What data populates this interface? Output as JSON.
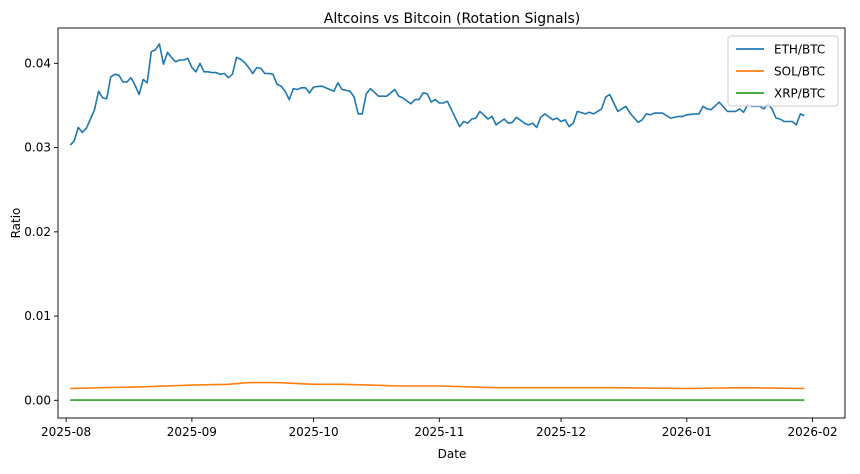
{
  "chart_data": {
    "type": "line",
    "title": "Altcoins vs Bitcoin (Rotation Signals)",
    "xlabel": "Date",
    "ylabel": "Ratio",
    "xlim": [
      "2025-07-30",
      "2026-02-09"
    ],
    "ylim": [
      -0.0021,
      0.0442
    ],
    "x_ticks": [
      "2025-08",
      "2025-09",
      "2025-10",
      "2025-11",
      "2025-12",
      "2026-01",
      "2026-02"
    ],
    "x_tick_dates": [
      "2025-08-01",
      "2025-09-01",
      "2025-10-01",
      "2025-11-01",
      "2025-12-01",
      "2026-01-01",
      "2026-02-01"
    ],
    "y_ticks": [
      "0.00",
      "0.01",
      "0.02",
      "0.03",
      "0.04"
    ],
    "y_tick_values": [
      0,
      0.01,
      0.02,
      0.03,
      0.04
    ],
    "grid": false,
    "legend": "top-right",
    "series": [
      {
        "name": "ETH/BTC",
        "color": "#1f77b4",
        "points": [
          [
            "2025-08-02",
            0.0303
          ],
          [
            "2025-08-03",
            0.0308
          ],
          [
            "2025-08-04",
            0.0324
          ],
          [
            "2025-08-05",
            0.0318
          ],
          [
            "2025-08-06",
            0.0323
          ],
          [
            "2025-08-07",
            0.0334
          ],
          [
            "2025-08-08",
            0.0345
          ],
          [
            "2025-08-09",
            0.0367
          ],
          [
            "2025-08-10",
            0.0359
          ],
          [
            "2025-08-11",
            0.0358
          ],
          [
            "2025-08-12",
            0.0384
          ],
          [
            "2025-08-13",
            0.0387
          ],
          [
            "2025-08-14",
            0.0386
          ],
          [
            "2025-08-15",
            0.0378
          ],
          [
            "2025-08-16",
            0.0378
          ],
          [
            "2025-08-17",
            0.0383
          ],
          [
            "2025-08-18",
            0.0374
          ],
          [
            "2025-08-19",
            0.0363
          ],
          [
            "2025-08-20",
            0.0381
          ],
          [
            "2025-08-21",
            0.0377
          ],
          [
            "2025-08-22",
            0.0414
          ],
          [
            "2025-08-23",
            0.0416
          ],
          [
            "2025-08-24",
            0.0423
          ],
          [
            "2025-08-25",
            0.0399
          ],
          [
            "2025-08-26",
            0.0413
          ],
          [
            "2025-08-27",
            0.0407
          ],
          [
            "2025-08-28",
            0.0402
          ],
          [
            "2025-08-29",
            0.0404
          ],
          [
            "2025-08-30",
            0.0404
          ],
          [
            "2025-08-31",
            0.0406
          ],
          [
            "2025-09-01",
            0.0395
          ],
          [
            "2025-09-02",
            0.039
          ],
          [
            "2025-09-03",
            0.04
          ],
          [
            "2025-09-04",
            0.039
          ],
          [
            "2025-09-05",
            0.039
          ],
          [
            "2025-09-06",
            0.0389
          ],
          [
            "2025-09-07",
            0.0389
          ],
          [
            "2025-09-08",
            0.0387
          ],
          [
            "2025-09-09",
            0.0388
          ],
          [
            "2025-09-10",
            0.0383
          ],
          [
            "2025-09-11",
            0.0387
          ],
          [
            "2025-09-12",
            0.0407
          ],
          [
            "2025-09-13",
            0.0405
          ],
          [
            "2025-09-14",
            0.0401
          ],
          [
            "2025-09-15",
            0.0395
          ],
          [
            "2025-09-16",
            0.0388
          ],
          [
            "2025-09-17",
            0.0395
          ],
          [
            "2025-09-18",
            0.0394
          ],
          [
            "2025-09-19",
            0.0388
          ],
          [
            "2025-09-20",
            0.0388
          ],
          [
            "2025-09-21",
            0.0387
          ],
          [
            "2025-09-22",
            0.0375
          ],
          [
            "2025-09-23",
            0.0373
          ],
          [
            "2025-09-24",
            0.0367
          ],
          [
            "2025-09-25",
            0.0357
          ],
          [
            "2025-09-26",
            0.037
          ],
          [
            "2025-09-27",
            0.0369
          ],
          [
            "2025-09-28",
            0.0371
          ],
          [
            "2025-09-29",
            0.0371
          ],
          [
            "2025-09-30",
            0.0365
          ],
          [
            "2025-10-01",
            0.0372
          ],
          [
            "2025-10-03",
            0.0373
          ],
          [
            "2025-10-06",
            0.0367
          ],
          [
            "2025-10-07",
            0.0377
          ],
          [
            "2025-10-08",
            0.0369
          ],
          [
            "2025-10-10",
            0.0367
          ],
          [
            "2025-10-11",
            0.036
          ],
          [
            "2025-10-12",
            0.034
          ],
          [
            "2025-10-13",
            0.034
          ],
          [
            "2025-10-14",
            0.0364
          ],
          [
            "2025-10-15",
            0.037
          ],
          [
            "2025-10-17",
            0.0361
          ],
          [
            "2025-10-19",
            0.0361
          ],
          [
            "2025-10-21",
            0.0369
          ],
          [
            "2025-10-22",
            0.0361
          ],
          [
            "2025-10-23",
            0.0359
          ],
          [
            "2025-10-25",
            0.0352
          ],
          [
            "2025-10-26",
            0.0357
          ],
          [
            "2025-10-27",
            0.0357
          ],
          [
            "2025-10-28",
            0.0365
          ],
          [
            "2025-10-29",
            0.0364
          ],
          [
            "2025-10-30",
            0.0354
          ],
          [
            "2025-10-31",
            0.0357
          ],
          [
            "2025-11-01",
            0.0353
          ],
          [
            "2025-11-02",
            0.0353
          ],
          [
            "2025-11-03",
            0.0355
          ],
          [
            "2025-11-06",
            0.0325
          ],
          [
            "2025-11-07",
            0.0331
          ],
          [
            "2025-11-08",
            0.0329
          ],
          [
            "2025-11-09",
            0.0334
          ],
          [
            "2025-11-10",
            0.0335
          ],
          [
            "2025-11-11",
            0.0343
          ],
          [
            "2025-11-13",
            0.0334
          ],
          [
            "2025-11-14",
            0.0337
          ],
          [
            "2025-11-15",
            0.0327
          ],
          [
            "2025-11-17",
            0.0334
          ],
          [
            "2025-11-18",
            0.0329
          ],
          [
            "2025-11-19",
            0.033
          ],
          [
            "2025-11-20",
            0.0336
          ],
          [
            "2025-11-22",
            0.0329
          ],
          [
            "2025-11-23",
            0.0327
          ],
          [
            "2025-11-24",
            0.0329
          ],
          [
            "2025-11-25",
            0.0324
          ],
          [
            "2025-11-26",
            0.0336
          ],
          [
            "2025-11-27",
            0.034
          ],
          [
            "2025-11-29",
            0.0333
          ],
          [
            "2025-11-30",
            0.0335
          ],
          [
            "2025-12-01",
            0.0331
          ],
          [
            "2025-12-02",
            0.0333
          ],
          [
            "2025-12-03",
            0.0325
          ],
          [
            "2025-12-04",
            0.0329
          ],
          [
            "2025-12-05",
            0.0343
          ],
          [
            "2025-12-07",
            0.034
          ],
          [
            "2025-12-08",
            0.0342
          ],
          [
            "2025-12-09",
            0.034
          ],
          [
            "2025-12-11",
            0.0346
          ],
          [
            "2025-12-12",
            0.036
          ],
          [
            "2025-12-13",
            0.0363
          ],
          [
            "2025-12-14",
            0.0353
          ],
          [
            "2025-12-15",
            0.0343
          ],
          [
            "2025-12-17",
            0.0349
          ],
          [
            "2025-12-18",
            0.0341
          ],
          [
            "2025-12-20",
            0.033
          ],
          [
            "2025-12-21",
            0.0333
          ],
          [
            "2025-12-22",
            0.034
          ],
          [
            "2025-12-23",
            0.0339
          ],
          [
            "2025-12-24",
            0.0341
          ],
          [
            "2025-12-26",
            0.0341
          ],
          [
            "2025-12-28",
            0.0335
          ],
          [
            "2025-12-30",
            0.0337
          ],
          [
            "2025-12-31",
            0.0337
          ],
          [
            "2026-01-01",
            0.0339
          ],
          [
            "2026-01-03",
            0.034
          ],
          [
            "2026-01-04",
            0.034
          ],
          [
            "2026-01-05",
            0.0349
          ],
          [
            "2026-01-06",
            0.0346
          ],
          [
            "2026-01-07",
            0.0345
          ],
          [
            "2026-01-09",
            0.0354
          ],
          [
            "2026-01-11",
            0.0343
          ],
          [
            "2026-01-13",
            0.0343
          ],
          [
            "2026-01-14",
            0.0346
          ],
          [
            "2026-01-15",
            0.0342
          ],
          [
            "2026-01-16",
            0.0351
          ],
          [
            "2026-01-17",
            0.0349
          ],
          [
            "2026-01-19",
            0.0349
          ],
          [
            "2026-01-20",
            0.0346
          ],
          [
            "2026-01-21",
            0.0352
          ],
          [
            "2026-01-22",
            0.0346
          ],
          [
            "2026-01-23",
            0.0335
          ],
          [
            "2026-01-24",
            0.0334
          ],
          [
            "2026-01-25",
            0.0331
          ],
          [
            "2026-01-26",
            0.0331
          ],
          [
            "2026-01-27",
            0.0331
          ],
          [
            "2026-01-28",
            0.0327
          ],
          [
            "2026-01-29",
            0.034
          ],
          [
            "2026-01-30",
            0.0338
          ]
        ]
      },
      {
        "name": "SOL/BTC",
        "color": "#ff7f0e",
        "points": [
          [
            "2025-08-02",
            0.0014
          ],
          [
            "2025-08-10",
            0.0015
          ],
          [
            "2025-08-20",
            0.0016
          ],
          [
            "2025-09-01",
            0.0018
          ],
          [
            "2025-09-10",
            0.0019
          ],
          [
            "2025-09-15",
            0.0021
          ],
          [
            "2025-09-22",
            0.0021
          ],
          [
            "2025-10-01",
            0.0019
          ],
          [
            "2025-10-08",
            0.0019
          ],
          [
            "2025-10-15",
            0.0018
          ],
          [
            "2025-10-22",
            0.0017
          ],
          [
            "2025-11-01",
            0.0017
          ],
          [
            "2025-11-08",
            0.0016
          ],
          [
            "2025-11-15",
            0.0015
          ],
          [
            "2025-11-25",
            0.0015
          ],
          [
            "2025-12-01",
            0.0015
          ],
          [
            "2025-12-15",
            0.0015
          ],
          [
            "2026-01-01",
            0.0014
          ],
          [
            "2026-01-15",
            0.0015
          ],
          [
            "2026-01-30",
            0.0014
          ]
        ]
      },
      {
        "name": "XRP/BTC",
        "color": "#2ca02c",
        "points": [
          [
            "2025-08-02",
            2e-05
          ],
          [
            "2026-01-30",
            2e-05
          ]
        ]
      }
    ]
  }
}
